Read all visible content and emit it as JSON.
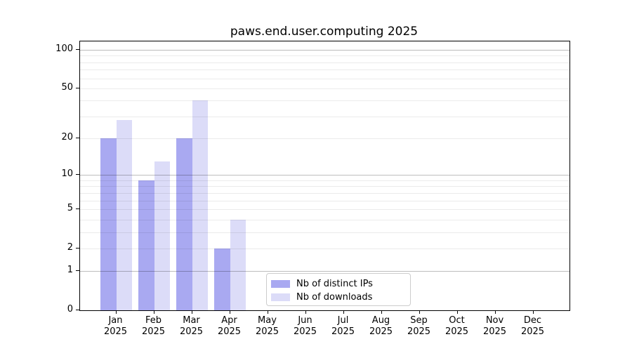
{
  "chart_data": {
    "type": "bar",
    "title": "paws.end.user.computing 2025",
    "x_year": "2025",
    "categories": [
      "Jan",
      "Feb",
      "Mar",
      "Apr",
      "May",
      "Jun",
      "Jul",
      "Aug",
      "Sep",
      "Oct",
      "Nov",
      "Dec"
    ],
    "series": [
      {
        "name": "Nb of distinct IPs",
        "color": "#a9a9f1",
        "values": [
          20,
          9,
          20,
          2,
          0,
          0,
          0,
          0,
          0,
          0,
          0,
          0
        ]
      },
      {
        "name": "Nb of downloads",
        "color": "#dcdcf8",
        "values": [
          28,
          13,
          40,
          4,
          0,
          0,
          0,
          0,
          0,
          0,
          0,
          0
        ]
      }
    ],
    "yscale": "log10(value+1)",
    "ylim": [
      0,
      110
    ],
    "ytick_values": [
      0,
      1,
      2,
      5,
      10,
      20,
      50,
      100
    ],
    "grid": {
      "major_values": [
        1,
        10,
        100
      ],
      "minor_values": [
        2,
        3,
        4,
        5,
        6,
        7,
        8,
        9,
        20,
        30,
        40,
        50,
        60,
        70,
        80,
        90
      ]
    },
    "legend_position": "lower center"
  },
  "colors": {
    "bar_distinct_ips": "#a9a9f1",
    "bar_downloads": "#dcdcf8",
    "major_grid": "rgba(0,0,0,0.26)",
    "minor_grid": "rgba(0,0,0,0.08)",
    "axis": "#000000",
    "legend_border": "#cccccc",
    "background": "#ffffff"
  }
}
